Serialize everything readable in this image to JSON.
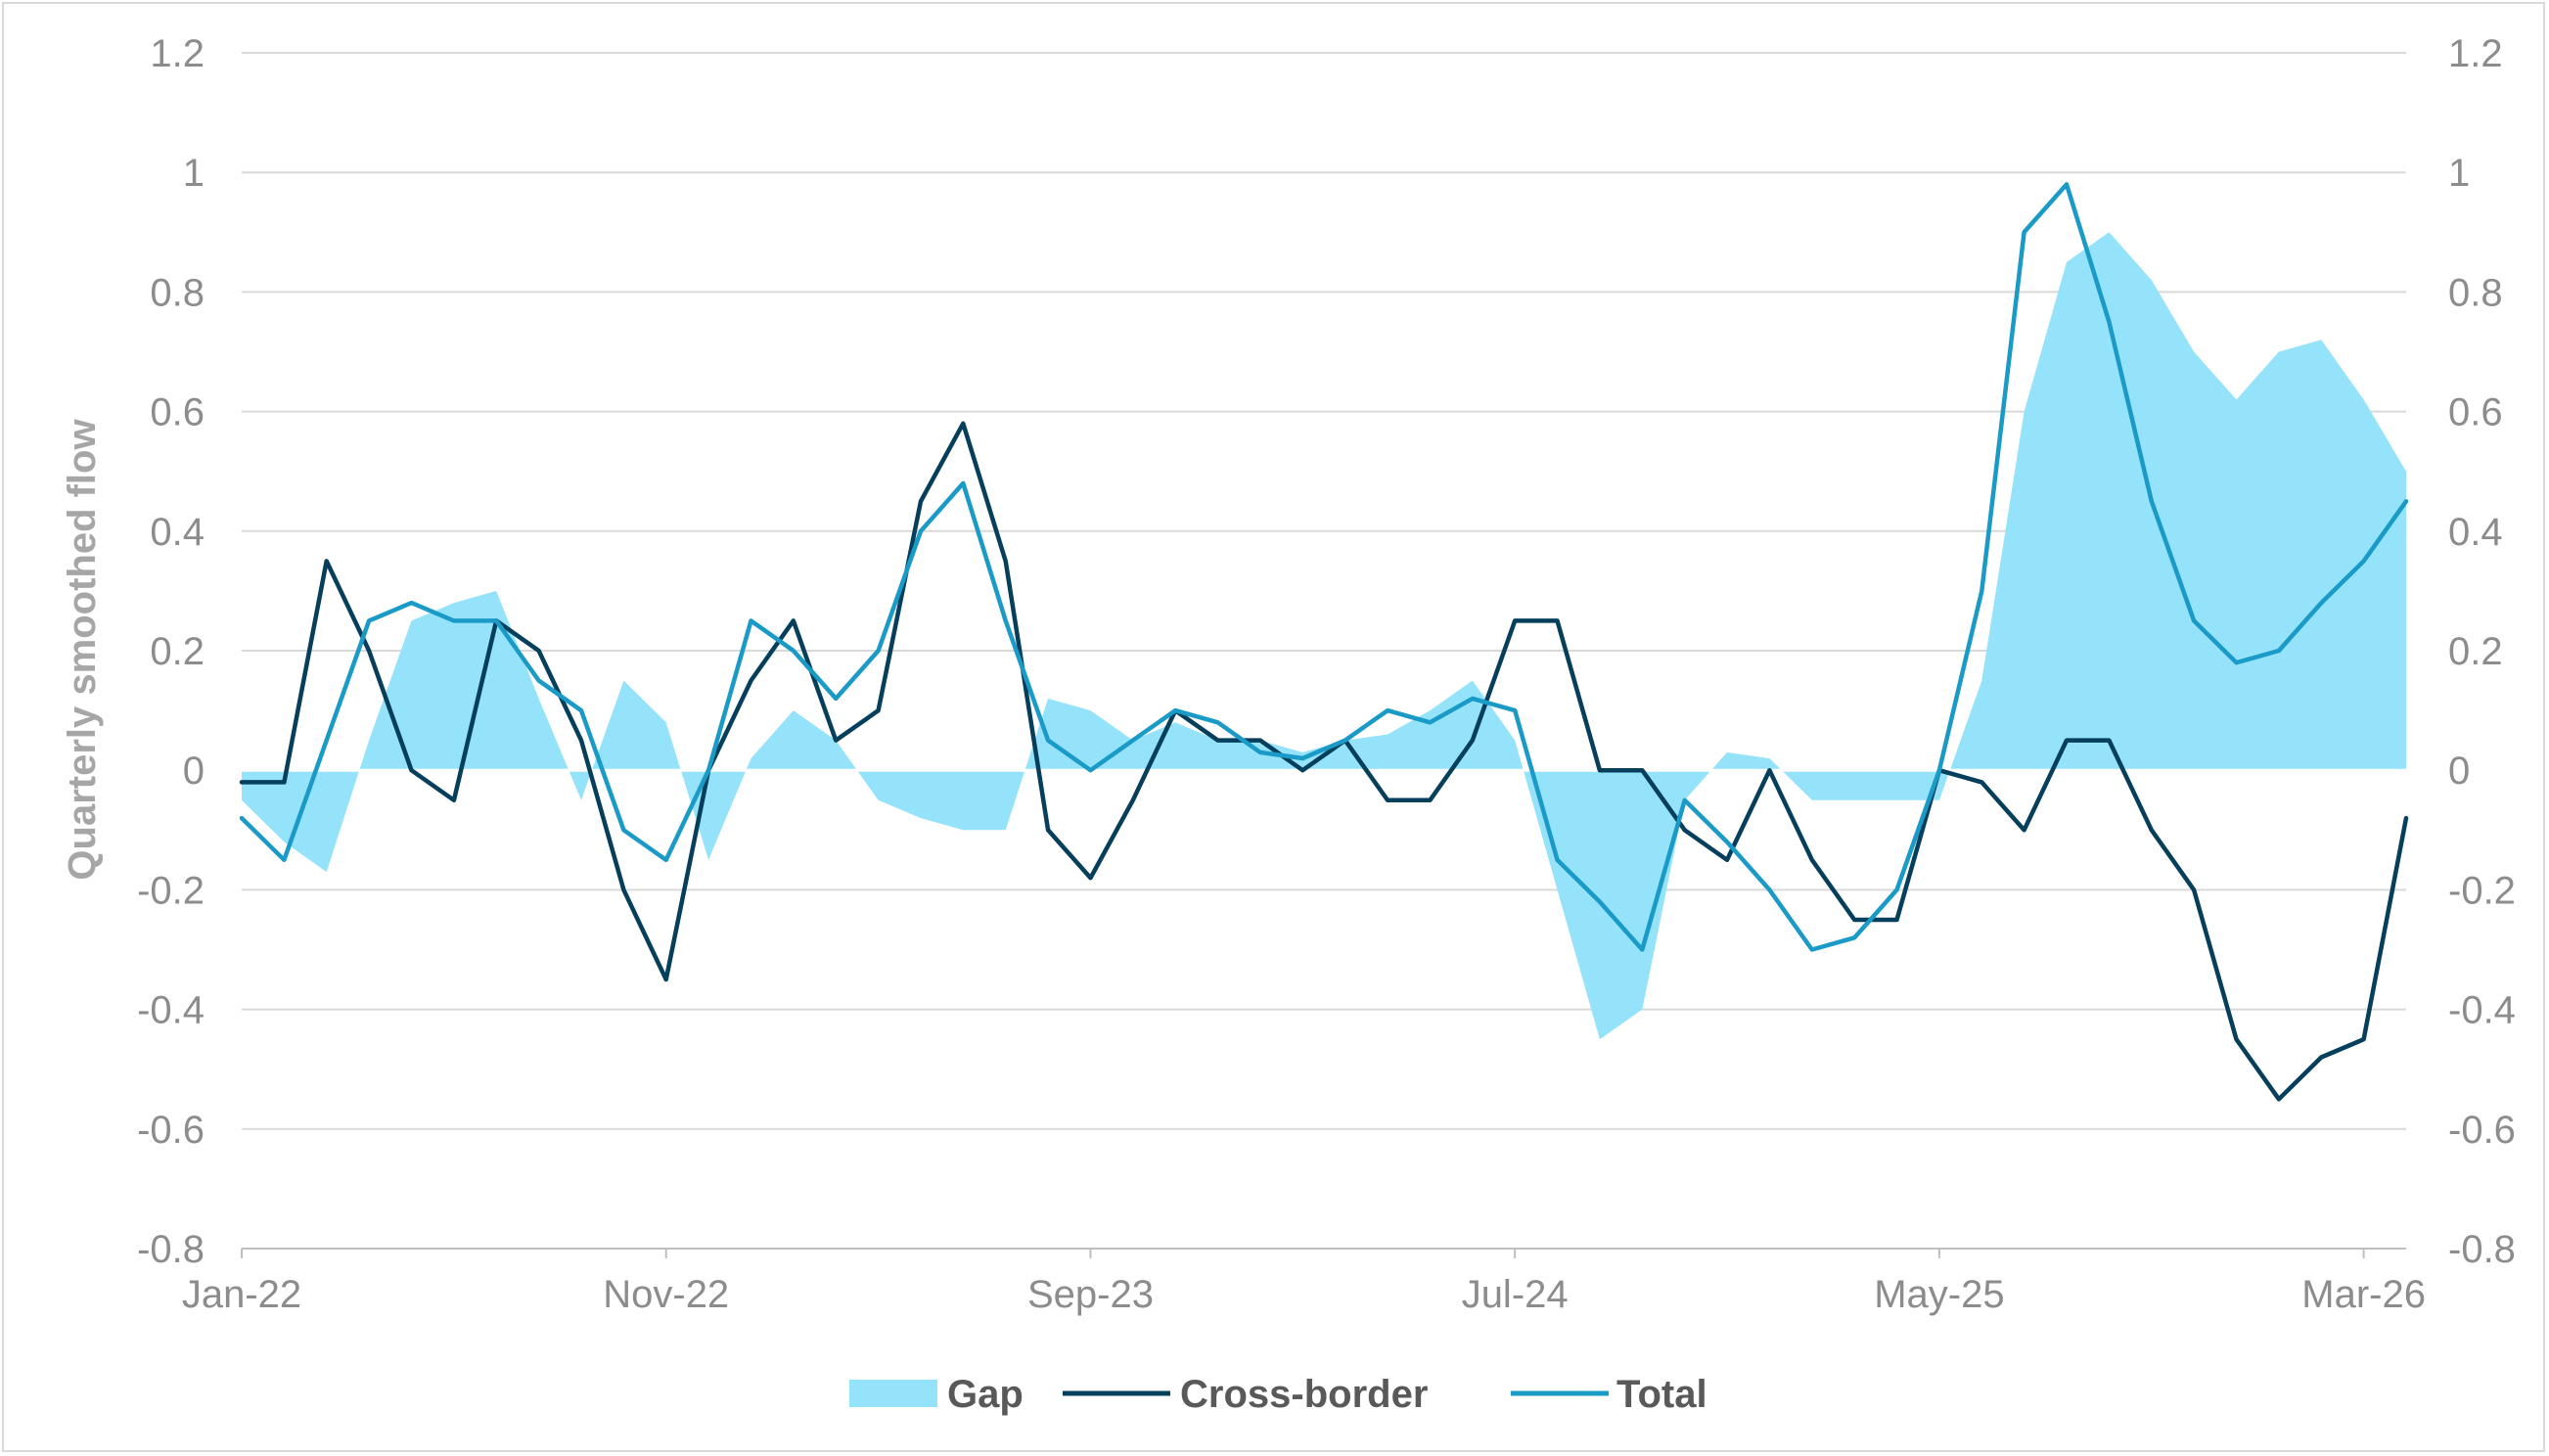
{
  "chart_data": {
    "type": "line",
    "title": "",
    "xlabel": "",
    "ylabel": "Quarterly smoothed flow",
    "ylim": [
      -0.8,
      1.2
    ],
    "y_ticks": [
      "1.2",
      "1",
      "0.8",
      "0.6",
      "0.4",
      "0.2",
      "0",
      "-0.2",
      "-0.4",
      "-0.6",
      "-0.8"
    ],
    "y_tick_values": [
      1.2,
      1.0,
      0.8,
      0.6,
      0.4,
      0.2,
      0.0,
      -0.2,
      -0.4,
      -0.6,
      -0.8
    ],
    "x_ticks": [
      "Jan-22",
      "Nov-22",
      "Sep-23",
      "Jul-24",
      "May-25",
      "Mar-26"
    ],
    "x_tick_values": [
      "2022-01",
      "2022-11",
      "2023-09",
      "2024-07",
      "2025-05",
      "2026-03"
    ],
    "grid": true,
    "legend_position": "bottom",
    "colors": {
      "gap": "#95e3fb",
      "cross_border": "#053f5c",
      "total": "#1a9ac6"
    },
    "x": [
      "2022-01",
      "2022-02",
      "2022-03",
      "2022-04",
      "2022-05",
      "2022-06",
      "2022-07",
      "2022-08",
      "2022-09",
      "2022-10",
      "2022-11",
      "2022-12",
      "2023-01",
      "2023-02",
      "2023-03",
      "2023-04",
      "2023-05",
      "2023-06",
      "2023-07",
      "2023-08",
      "2023-09",
      "2023-10",
      "2023-11",
      "2023-12",
      "2024-01",
      "2024-02",
      "2024-03",
      "2024-04",
      "2024-05",
      "2024-06",
      "2024-07",
      "2024-08",
      "2024-09",
      "2024-10",
      "2024-11",
      "2024-12",
      "2025-01",
      "2025-02",
      "2025-03",
      "2025-04",
      "2025-05",
      "2025-06",
      "2025-07",
      "2025-08",
      "2025-09",
      "2025-10",
      "2025-11",
      "2025-12",
      "2026-01",
      "2026-02",
      "2026-03",
      "2026-04"
    ],
    "series": [
      {
        "name": "Gap",
        "style": "area",
        "values": [
          -0.05,
          -0.12,
          -0.17,
          0.05,
          0.25,
          0.28,
          0.3,
          0.12,
          -0.05,
          0.15,
          0.08,
          -0.15,
          0.02,
          0.1,
          0.05,
          -0.05,
          -0.08,
          -0.1,
          -0.1,
          0.12,
          0.1,
          0.05,
          0.08,
          0.05,
          0.05,
          0.03,
          0.05,
          0.06,
          0.1,
          0.15,
          0.05,
          -0.2,
          -0.45,
          -0.4,
          -0.05,
          0.03,
          0.02,
          -0.05,
          -0.05,
          -0.05,
          -0.05,
          0.15,
          0.6,
          0.85,
          0.9,
          0.82,
          0.7,
          0.62,
          0.7,
          0.72,
          0.62,
          0.5
        ]
      },
      {
        "name": "Cross-border",
        "style": "line",
        "values": [
          -0.02,
          -0.02,
          0.35,
          0.2,
          0.0,
          -0.05,
          0.25,
          0.2,
          0.05,
          -0.2,
          -0.35,
          0.0,
          0.15,
          0.25,
          0.05,
          0.1,
          0.45,
          0.58,
          0.35,
          -0.1,
          -0.18,
          -0.05,
          0.1,
          0.05,
          0.05,
          0.0,
          0.05,
          -0.05,
          -0.05,
          0.05,
          0.25,
          0.25,
          0.0,
          0.0,
          -0.1,
          -0.15,
          0.0,
          -0.15,
          -0.25,
          -0.25,
          0.0,
          -0.02,
          -0.1,
          0.05,
          0.05,
          -0.1,
          -0.2,
          -0.45,
          -0.55,
          -0.48,
          -0.45,
          -0.08
        ]
      },
      {
        "name": "Total",
        "style": "line",
        "values": [
          -0.08,
          -0.15,
          0.05,
          0.25,
          0.28,
          0.25,
          0.25,
          0.15,
          0.1,
          -0.1,
          -0.15,
          0.0,
          0.25,
          0.2,
          0.12,
          0.2,
          0.4,
          0.48,
          0.25,
          0.05,
          0.0,
          0.05,
          0.1,
          0.08,
          0.03,
          0.02,
          0.05,
          0.1,
          0.08,
          0.12,
          0.1,
          -0.15,
          -0.22,
          -0.3,
          -0.05,
          -0.12,
          -0.2,
          -0.3,
          -0.28,
          -0.2,
          0.0,
          0.3,
          0.9,
          0.98,
          0.75,
          0.45,
          0.25,
          0.18,
          0.2,
          0.28,
          0.35,
          0.45
        ]
      }
    ]
  }
}
